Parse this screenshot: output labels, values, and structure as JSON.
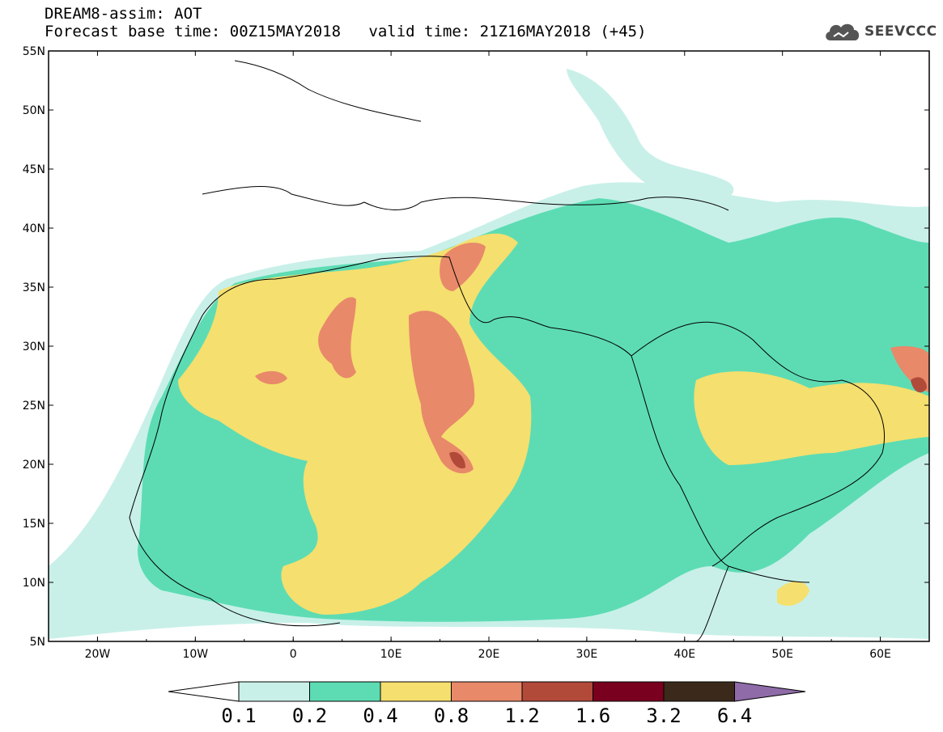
{
  "header": {
    "line1": "DREAM8-assim: AOT",
    "line2_base": "Forecast base time: 00Z15MAY2018",
    "line2_valid": "valid time: 21Z16MAY2018 (+45)"
  },
  "logo": {
    "text": "SEEVCCC",
    "icon": "cloud-logo-icon"
  },
  "map": {
    "lon_range": [
      -25,
      65
    ],
    "lat_range": [
      5,
      55
    ],
    "lat_labels": [
      "55N",
      "50N",
      "45N",
      "40N",
      "35N",
      "30N",
      "25N",
      "20N",
      "15N",
      "10N",
      "5N"
    ],
    "lon_labels": [
      "20W",
      "10W",
      "0",
      "10E",
      "20E",
      "30E",
      "40E",
      "50E",
      "60E"
    ]
  },
  "colorbar": {
    "labels": [
      "0.1",
      "0.2",
      "0.4",
      "0.8",
      "1.2",
      "1.6",
      "3.2",
      "6.4"
    ],
    "colors": [
      "#ffffff",
      "#c8f0e8",
      "#5ddcb4",
      "#f5df6e",
      "#e8896a",
      "#b24a3a",
      "#7a0020",
      "#3b2a1c",
      "#8f6ba8"
    ]
  }
}
